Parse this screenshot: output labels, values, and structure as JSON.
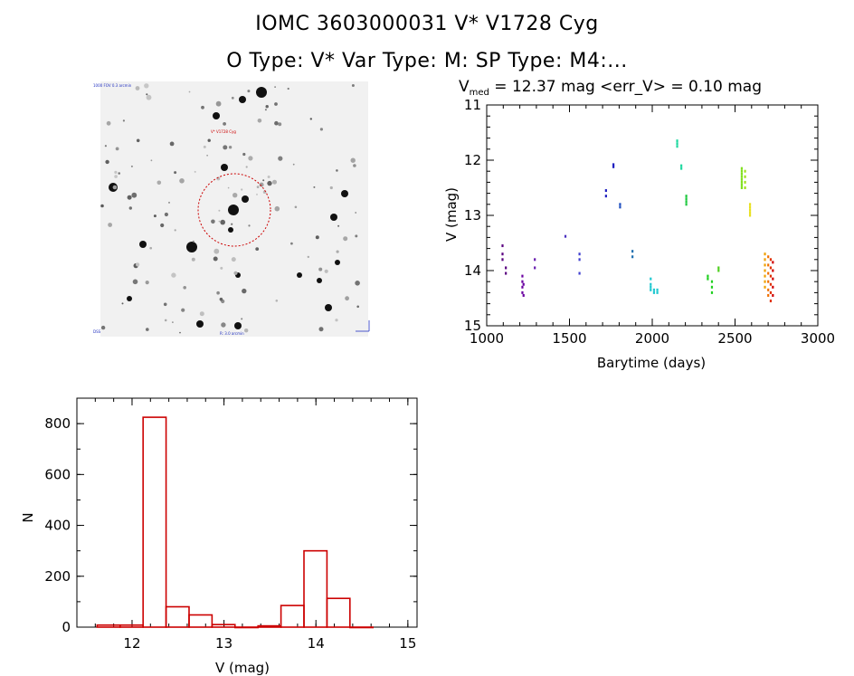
{
  "header": {
    "title": "IOMC 3603000031    V* V1728 Cyg",
    "subtitle": "O Type: V*  Var Type: M:  SP Type: M4:..."
  },
  "finder": {
    "top_left_label": "1000 FOV 0.3 arcmin",
    "marker_label": "V* V1728 Cyg",
    "bottom_left_label": "DSS",
    "bottom_center_label": "R: 3.0 arcmin"
  },
  "chart_data": [
    {
      "type": "scatter",
      "title": "V_med = 12.37 mag <err_V> = 0.10 mag",
      "title_main": "V",
      "title_sub": "med",
      "title_rest": " = 12.37 mag <err_V> = 0.10 mag",
      "xlabel": "Barytime (days)",
      "ylabel": "V (mag)",
      "xlim": [
        1000,
        3000
      ],
      "ylim": [
        15,
        11
      ],
      "x_ticks": [
        1000,
        1500,
        2000,
        2500,
        3000
      ],
      "y_ticks": [
        11,
        12,
        13,
        14,
        15
      ],
      "groups": [
        {
          "x": 1095,
          "y": [
            13.55,
            13.7,
            13.8
          ],
          "color": "#5a0080"
        },
        {
          "x": 1115,
          "y": [
            13.95,
            14.05
          ],
          "color": "#5a0080"
        },
        {
          "x": 1215,
          "y": [
            14.1,
            14.2,
            14.3,
            14.4
          ],
          "color": "#6a00a0"
        },
        {
          "x": 1222,
          "y": [
            14.25,
            14.45
          ],
          "color": "#6a00a0"
        },
        {
          "x": 1290,
          "y": [
            13.8,
            13.95
          ],
          "color": "#6a20b0"
        },
        {
          "x": 1475,
          "y": [
            13.38
          ],
          "color": "#4a30c0"
        },
        {
          "x": 1560,
          "y": [
            13.7,
            13.8,
            14.05
          ],
          "color": "#4040d0"
        },
        {
          "x": 1720,
          "y": [
            12.55,
            12.65
          ],
          "color": "#2020c0"
        },
        {
          "x": 1765,
          "y": [
            12.08,
            12.12
          ],
          "color": "#2020c0"
        },
        {
          "x": 1805,
          "y": [
            12.8,
            12.85
          ],
          "color": "#2050c0"
        },
        {
          "x": 1880,
          "y": [
            13.65,
            13.75
          ],
          "color": "#2070b0"
        },
        {
          "x": 1990,
          "y": [
            14.15,
            14.25,
            14.3,
            14.35
          ],
          "color": "#20c8d0"
        },
        {
          "x": 2010,
          "y": [
            14.35,
            14.4
          ],
          "color": "#20c8d0"
        },
        {
          "x": 2030,
          "y": [
            14.35,
            14.4
          ],
          "color": "#20c8d0"
        },
        {
          "x": 2150,
          "y": [
            11.65,
            11.7,
            11.75
          ],
          "color": "#20d8a0"
        },
        {
          "x": 2175,
          "y": [
            12.1,
            12.15
          ],
          "color": "#20d8a0"
        },
        {
          "x": 2205,
          "y": [
            12.65,
            12.7,
            12.75,
            12.8
          ],
          "color": "#20c840"
        },
        {
          "x": 2335,
          "y": [
            14.1,
            14.15
          ],
          "color": "#20d020"
        },
        {
          "x": 2360,
          "y": [
            14.2,
            14.3,
            14.4
          ],
          "color": "#20d020"
        },
        {
          "x": 2400,
          "y": [
            13.95,
            14.0
          ],
          "color": "#50d020"
        },
        {
          "x": 2540,
          "y": [
            12.15,
            12.2,
            12.25,
            12.3,
            12.35,
            12.4,
            12.45,
            12.5
          ],
          "color": "#80e020"
        },
        {
          "x": 2560,
          "y": [
            12.2,
            12.3,
            12.4,
            12.5
          ],
          "color": "#a0e020"
        },
        {
          "x": 2590,
          "y": [
            12.8,
            12.85,
            12.9,
            12.95,
            13.0
          ],
          "color": "#e8e020"
        },
        {
          "x": 2680,
          "y": [
            13.7,
            13.8,
            13.9,
            14.0,
            14.1,
            14.2,
            14.3
          ],
          "color": "#f0a000"
        },
        {
          "x": 2700,
          "y": [
            13.75,
            13.9,
            14.05,
            14.2,
            14.35,
            14.45
          ],
          "color": "#f07000"
        },
        {
          "x": 2715,
          "y": [
            13.8,
            13.95,
            14.1,
            14.25,
            14.4,
            14.55
          ],
          "color": "#e03000"
        },
        {
          "x": 2728,
          "y": [
            13.85,
            14.0,
            14.15,
            14.3,
            14.45
          ],
          "color": "#d00000"
        }
      ]
    },
    {
      "type": "bar",
      "xlabel": "V (mag)",
      "ylabel": "N",
      "xlim": [
        11.4,
        15.1
      ],
      "ylim": [
        0,
        900
      ],
      "x_ticks": [
        12,
        13,
        14,
        15
      ],
      "y_ticks": [
        0,
        200,
        400,
        600,
        800
      ],
      "bin_width": 0.25,
      "bin_starts": [
        11.62,
        11.87,
        12.12,
        12.37,
        12.62,
        12.87,
        13.12,
        13.37,
        13.62,
        13.87,
        14.12,
        14.37
      ],
      "values": [
        8,
        8,
        825,
        80,
        48,
        10,
        0,
        5,
        85,
        300,
        113,
        0
      ],
      "color": "#cc0000"
    }
  ]
}
